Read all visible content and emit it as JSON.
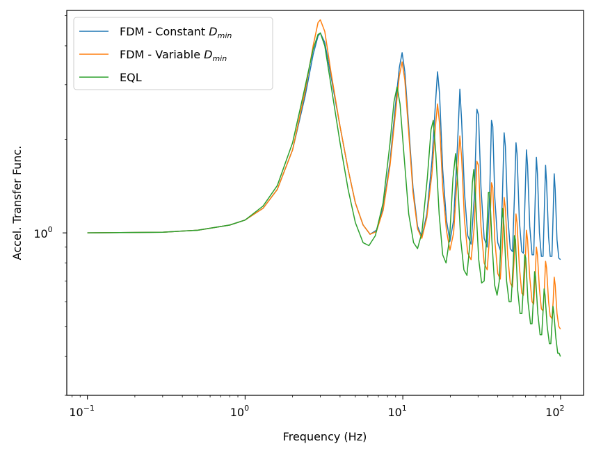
{
  "chart_data": {
    "type": "line",
    "title": "",
    "xlabel": "Frequency (Hz)",
    "ylabel": "Accel. Transfer Func.",
    "x_scale": "log",
    "y_scale": "log",
    "xlim": [
      0.074,
      140
    ],
    "ylim": [
      0.3,
      5.2
    ],
    "grid": false,
    "legend_position": "top-left",
    "x_ticks": [
      {
        "base": "10",
        "exp": "−1",
        "value": 0.1
      },
      {
        "base": "10",
        "exp": "0",
        "value": 1
      },
      {
        "base": "10",
        "exp": "1",
        "value": 10
      },
      {
        "base": "10",
        "exp": "2",
        "value": 100
      }
    ],
    "y_ticks": [
      {
        "base": "10",
        "exp": "0",
        "value": 1
      }
    ],
    "series": [
      {
        "name": "FDM - Constant D_min",
        "legend_main": "FDM - Constant ",
        "legend_it": "D",
        "legend_sub": "min",
        "color": "#1f77b4",
        "points": [
          [
            0.1,
            1.0
          ],
          [
            0.3,
            1.005
          ],
          [
            0.5,
            1.02
          ],
          [
            0.8,
            1.06
          ],
          [
            1.0,
            1.1
          ],
          [
            1.3,
            1.2
          ],
          [
            1.6,
            1.38
          ],
          [
            2.0,
            1.85
          ],
          [
            2.4,
            2.75
          ],
          [
            2.7,
            3.75
          ],
          [
            2.9,
            4.3
          ],
          [
            3.0,
            4.4
          ],
          [
            3.2,
            4.1
          ],
          [
            3.5,
            3.2
          ],
          [
            4.0,
            2.2
          ],
          [
            4.5,
            1.6
          ],
          [
            5.0,
            1.25
          ],
          [
            5.6,
            1.06
          ],
          [
            6.2,
            0.99
          ],
          [
            6.8,
            1.02
          ],
          [
            7.5,
            1.2
          ],
          [
            8.3,
            1.7
          ],
          [
            9.0,
            2.6
          ],
          [
            9.5,
            3.4
          ],
          [
            9.9,
            3.8
          ],
          [
            10.3,
            3.3
          ],
          [
            10.9,
            2.2
          ],
          [
            11.6,
            1.4
          ],
          [
            12.4,
            1.05
          ],
          [
            13.2,
            0.97
          ],
          [
            14.2,
            1.15
          ],
          [
            15.3,
            1.7
          ],
          [
            16.1,
            2.6
          ],
          [
            16.6,
            3.3
          ],
          [
            17.1,
            2.8
          ],
          [
            17.9,
            1.6
          ],
          [
            18.9,
            1.1
          ],
          [
            19.9,
            0.94
          ],
          [
            21.0,
            1.1
          ],
          [
            22.2,
            1.9
          ],
          [
            23.0,
            2.9
          ],
          [
            23.6,
            2.3
          ],
          [
            24.6,
            1.35
          ],
          [
            25.8,
            0.98
          ],
          [
            27.1,
            0.92
          ],
          [
            28.4,
            1.3
          ],
          [
            29.5,
            2.5
          ],
          [
            30.2,
            2.4
          ],
          [
            31.3,
            1.4
          ],
          [
            32.8,
            0.96
          ],
          [
            34.3,
            0.9
          ],
          [
            35.5,
            1.3
          ],
          [
            36.5,
            2.3
          ],
          [
            37.2,
            2.2
          ],
          [
            38.3,
            1.3
          ],
          [
            40.0,
            0.93
          ],
          [
            41.5,
            0.88
          ],
          [
            42.8,
            1.3
          ],
          [
            43.9,
            2.1
          ],
          [
            44.7,
            1.9
          ],
          [
            46.2,
            1.15
          ],
          [
            48.0,
            0.89
          ],
          [
            49.6,
            0.87
          ],
          [
            51.0,
            1.3
          ],
          [
            52.2,
            1.95
          ],
          [
            53.0,
            1.8
          ],
          [
            54.8,
            1.1
          ],
          [
            56.8,
            0.87
          ],
          [
            58.2,
            0.86
          ],
          [
            59.6,
            1.3
          ],
          [
            60.8,
            1.85
          ],
          [
            61.8,
            1.65
          ],
          [
            63.8,
            1.05
          ],
          [
            66.0,
            0.85
          ],
          [
            67.6,
            0.85
          ],
          [
            69.0,
            1.25
          ],
          [
            70.3,
            1.75
          ],
          [
            71.4,
            1.55
          ],
          [
            73.5,
            1.0
          ],
          [
            75.6,
            0.84
          ],
          [
            77.5,
            0.84
          ],
          [
            79.0,
            1.2
          ],
          [
            80.4,
            1.65
          ],
          [
            81.6,
            1.45
          ],
          [
            84.0,
            0.97
          ],
          [
            86.0,
            0.84
          ],
          [
            88.2,
            0.84
          ],
          [
            89.8,
            1.15
          ],
          [
            91.2,
            1.55
          ],
          [
            92.5,
            1.38
          ],
          [
            95.0,
            0.95
          ],
          [
            97.5,
            0.83
          ],
          [
            99.9,
            0.82
          ]
        ]
      },
      {
        "name": "FDM - Variable D_min",
        "legend_main": "FDM - Variable ",
        "legend_it": "D",
        "legend_sub": "min",
        "color": "#ff7f0e",
        "points": [
          [
            0.1,
            1.0
          ],
          [
            0.3,
            1.005
          ],
          [
            0.5,
            1.02
          ],
          [
            0.8,
            1.06
          ],
          [
            1.0,
            1.1
          ],
          [
            1.3,
            1.2
          ],
          [
            1.6,
            1.38
          ],
          [
            2.0,
            1.85
          ],
          [
            2.4,
            2.85
          ],
          [
            2.7,
            4.0
          ],
          [
            2.9,
            4.75
          ],
          [
            3.0,
            4.85
          ],
          [
            3.2,
            4.45
          ],
          [
            3.5,
            3.3
          ],
          [
            4.0,
            2.2
          ],
          [
            4.5,
            1.6
          ],
          [
            5.0,
            1.25
          ],
          [
            5.6,
            1.06
          ],
          [
            6.2,
            0.99
          ],
          [
            6.8,
            1.01
          ],
          [
            7.5,
            1.18
          ],
          [
            8.3,
            1.65
          ],
          [
            9.0,
            2.45
          ],
          [
            9.5,
            3.2
          ],
          [
            9.9,
            3.55
          ],
          [
            10.3,
            3.1
          ],
          [
            10.9,
            2.1
          ],
          [
            11.6,
            1.35
          ],
          [
            12.4,
            1.03
          ],
          [
            13.2,
            0.96
          ],
          [
            14.2,
            1.12
          ],
          [
            15.3,
            1.55
          ],
          [
            16.1,
            2.2
          ],
          [
            16.6,
            2.6
          ],
          [
            17.1,
            2.25
          ],
          [
            17.9,
            1.4
          ],
          [
            18.9,
            1.02
          ],
          [
            19.9,
            0.88
          ],
          [
            21.0,
            1.0
          ],
          [
            22.2,
            1.55
          ],
          [
            23.0,
            2.05
          ],
          [
            23.6,
            1.75
          ],
          [
            24.6,
            1.1
          ],
          [
            25.8,
            0.86
          ],
          [
            27.1,
            0.82
          ],
          [
            28.4,
            1.05
          ],
          [
            29.5,
            1.7
          ],
          [
            30.2,
            1.65
          ],
          [
            31.3,
            1.05
          ],
          [
            32.8,
            0.8
          ],
          [
            34.3,
            0.76
          ],
          [
            35.5,
            0.98
          ],
          [
            36.5,
            1.45
          ],
          [
            37.2,
            1.4
          ],
          [
            38.3,
            0.95
          ],
          [
            40.0,
            0.74
          ],
          [
            41.5,
            0.71
          ],
          [
            42.8,
            0.9
          ],
          [
            43.9,
            1.3
          ],
          [
            44.7,
            1.2
          ],
          [
            46.2,
            0.85
          ],
          [
            48.0,
            0.69
          ],
          [
            49.6,
            0.67
          ],
          [
            51.0,
            0.85
          ],
          [
            52.2,
            1.15
          ],
          [
            53.0,
            1.08
          ],
          [
            54.8,
            0.78
          ],
          [
            56.8,
            0.64
          ],
          [
            58.2,
            0.63
          ],
          [
            59.6,
            0.78
          ],
          [
            60.8,
            1.02
          ],
          [
            61.8,
            0.95
          ],
          [
            63.8,
            0.72
          ],
          [
            66.0,
            0.6
          ],
          [
            67.6,
            0.59
          ],
          [
            69.0,
            0.71
          ],
          [
            70.3,
            0.9
          ],
          [
            71.4,
            0.85
          ],
          [
            73.5,
            0.66
          ],
          [
            75.6,
            0.57
          ],
          [
            77.5,
            0.56
          ],
          [
            79.0,
            0.66
          ],
          [
            80.4,
            0.81
          ],
          [
            81.6,
            0.77
          ],
          [
            84.0,
            0.6
          ],
          [
            86.0,
            0.54
          ],
          [
            88.2,
            0.53
          ],
          [
            89.8,
            0.6
          ],
          [
            91.2,
            0.72
          ],
          [
            92.5,
            0.68
          ],
          [
            95.0,
            0.55
          ],
          [
            97.5,
            0.5
          ],
          [
            99.9,
            0.49
          ]
        ]
      },
      {
        "name": "EQL",
        "legend_main": "EQL",
        "legend_it": "",
        "legend_sub": "",
        "color": "#2ca02c",
        "points": [
          [
            0.1,
            1.0
          ],
          [
            0.3,
            1.005
          ],
          [
            0.5,
            1.02
          ],
          [
            0.8,
            1.06
          ],
          [
            1.0,
            1.1
          ],
          [
            1.3,
            1.22
          ],
          [
            1.6,
            1.42
          ],
          [
            2.0,
            1.95
          ],
          [
            2.4,
            2.95
          ],
          [
            2.7,
            3.9
          ],
          [
            2.9,
            4.35
          ],
          [
            3.0,
            4.4
          ],
          [
            3.2,
            4.0
          ],
          [
            3.5,
            3.0
          ],
          [
            4.0,
            1.95
          ],
          [
            4.5,
            1.38
          ],
          [
            5.0,
            1.08
          ],
          [
            5.6,
            0.93
          ],
          [
            6.1,
            0.91
          ],
          [
            6.7,
            0.98
          ],
          [
            7.5,
            1.25
          ],
          [
            8.3,
            1.95
          ],
          [
            8.8,
            2.65
          ],
          [
            9.2,
            2.95
          ],
          [
            9.6,
            2.6
          ],
          [
            10.2,
            1.75
          ],
          [
            10.9,
            1.15
          ],
          [
            11.7,
            0.93
          ],
          [
            12.4,
            0.89
          ],
          [
            13.2,
            1.0
          ],
          [
            14.3,
            1.5
          ],
          [
            15.1,
            2.15
          ],
          [
            15.6,
            2.3
          ],
          [
            16.2,
            1.8
          ],
          [
            17.0,
            1.15
          ],
          [
            17.9,
            0.85
          ],
          [
            18.8,
            0.8
          ],
          [
            19.8,
            0.96
          ],
          [
            20.8,
            1.5
          ],
          [
            21.6,
            1.8
          ],
          [
            22.3,
            1.45
          ],
          [
            23.3,
            0.95
          ],
          [
            24.4,
            0.76
          ],
          [
            25.5,
            0.73
          ],
          [
            26.6,
            0.92
          ],
          [
            27.6,
            1.45
          ],
          [
            28.2,
            1.6
          ],
          [
            29.0,
            1.25
          ],
          [
            30.3,
            0.82
          ],
          [
            31.6,
            0.69
          ],
          [
            32.8,
            0.7
          ],
          [
            33.9,
            0.95
          ],
          [
            34.9,
            1.35
          ],
          [
            35.6,
            1.35
          ],
          [
            36.7,
            0.95
          ],
          [
            38.2,
            0.68
          ],
          [
            39.6,
            0.63
          ],
          [
            40.9,
            0.7
          ],
          [
            42.0,
            0.98
          ],
          [
            42.9,
            1.2
          ],
          [
            43.8,
            1.05
          ],
          [
            45.5,
            0.7
          ],
          [
            47.2,
            0.6
          ],
          [
            48.6,
            0.6
          ],
          [
            50.0,
            0.78
          ],
          [
            51.0,
            0.98
          ],
          [
            51.8,
            0.95
          ],
          [
            53.4,
            0.66
          ],
          [
            55.4,
            0.55
          ],
          [
            56.9,
            0.55
          ],
          [
            58.2,
            0.68
          ],
          [
            59.3,
            0.85
          ],
          [
            60.2,
            0.83
          ],
          [
            62.2,
            0.6
          ],
          [
            64.5,
            0.51
          ],
          [
            66.0,
            0.51
          ],
          [
            67.4,
            0.62
          ],
          [
            68.5,
            0.75
          ],
          [
            69.5,
            0.72
          ],
          [
            71.8,
            0.55
          ],
          [
            74.2,
            0.47
          ],
          [
            76.0,
            0.47
          ],
          [
            77.5,
            0.56
          ],
          [
            78.7,
            0.66
          ],
          [
            79.8,
            0.63
          ],
          [
            82.3,
            0.5
          ],
          [
            85.0,
            0.44
          ],
          [
            86.8,
            0.44
          ],
          [
            88.3,
            0.51
          ],
          [
            89.6,
            0.58
          ],
          [
            90.8,
            0.55
          ],
          [
            93.4,
            0.46
          ],
          [
            96.0,
            0.41
          ],
          [
            98.0,
            0.41
          ],
          [
            99.9,
            0.4
          ]
        ]
      }
    ]
  }
}
